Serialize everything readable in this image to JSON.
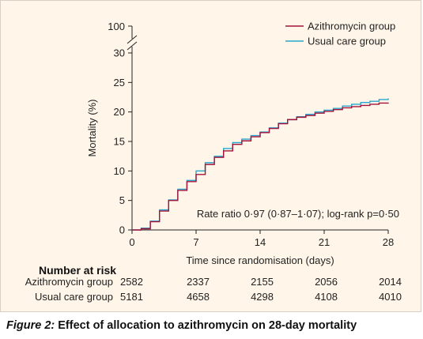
{
  "chart_data": {
    "type": "line",
    "xlabel": "Time since randomisation (days)",
    "ylabel": "Mortality (%)",
    "xlim": [
      0,
      28
    ],
    "ylim": [
      0,
      30
    ],
    "axis_break_top_label": "100",
    "x_ticks": [
      0,
      7,
      14,
      21,
      28
    ],
    "y_ticks": [
      0,
      5,
      10,
      15,
      20,
      25,
      30
    ],
    "legend_position": "top-right",
    "annotation": "Rate ratio 0·97 (0·87–1·07); log-rank p=0·50",
    "series": [
      {
        "name": "Azithromycin group",
        "color": "#a3123a",
        "x": [
          0,
          1,
          2,
          3,
          4,
          5,
          6,
          7,
          8,
          9,
          10,
          11,
          12,
          13,
          14,
          15,
          16,
          17,
          18,
          19,
          20,
          21,
          22,
          23,
          24,
          25,
          26,
          27,
          28
        ],
        "y": [
          0,
          0.2,
          1.4,
          3.2,
          5.0,
          6.7,
          8.2,
          9.4,
          11.1,
          12.3,
          13.4,
          14.5,
          15.1,
          15.8,
          16.5,
          17.2,
          18.0,
          18.7,
          19.1,
          19.4,
          19.8,
          20.1,
          20.4,
          20.7,
          20.9,
          21.1,
          21.3,
          21.5,
          21.6
        ]
      },
      {
        "name": "Usual care group",
        "color": "#2aa5cc",
        "x": [
          0,
          1,
          2,
          3,
          4,
          5,
          6,
          7,
          8,
          9,
          10,
          11,
          12,
          13,
          14,
          15,
          16,
          17,
          18,
          19,
          20,
          21,
          22,
          23,
          24,
          25,
          26,
          27,
          28
        ],
        "y": [
          0,
          0.3,
          1.5,
          3.4,
          5.1,
          6.9,
          8.4,
          10.0,
          11.4,
          12.5,
          13.8,
          14.8,
          15.4,
          16.0,
          16.6,
          17.3,
          18.1,
          18.7,
          19.2,
          19.6,
          20.0,
          20.3,
          20.6,
          21.0,
          21.3,
          21.6,
          21.8,
          22.1,
          22.3
        ]
      }
    ]
  },
  "risk_table": {
    "title": "Number at risk",
    "rows": [
      {
        "label": "Azithromycin group",
        "values": [
          "2582",
          "2337",
          "2155",
          "2056",
          "2014"
        ]
      },
      {
        "label": "Usual care group",
        "values": [
          "5181",
          "4658",
          "4298",
          "4108",
          "4010"
        ]
      }
    ]
  },
  "caption": {
    "lead": "Figure 2:",
    "text": " Effect of allocation to azithromycin on 28-day mortality"
  }
}
